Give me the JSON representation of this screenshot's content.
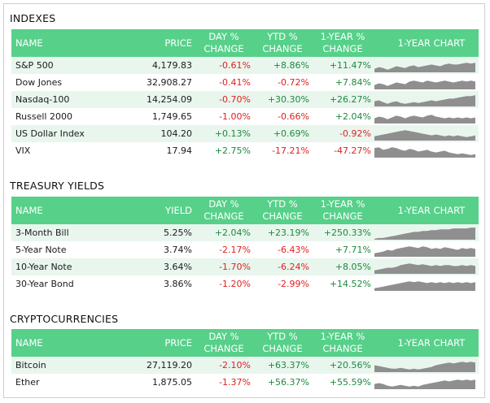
{
  "colors": {
    "header_bg": "#57d08a",
    "row_alt": "#e9f6ee",
    "positive": "#1c8a3e",
    "negative": "#e02020",
    "spark": "#8f8f8f"
  },
  "headers": {
    "name": "NAME",
    "price": "PRICE",
    "yield": "YIELD",
    "day_1": "DAY %",
    "day_2": "CHANGE",
    "ytd_1": "YTD %",
    "ytd_2": "CHANGE",
    "yr_1": "1-YEAR %",
    "yr_2": "CHANGE",
    "chart": "1-YEAR CHART"
  },
  "indexes": {
    "title": "INDEXES",
    "rows": [
      {
        "name": "S&P 500",
        "price": "4,179.83",
        "day": "-0.61%",
        "ytd": "+8.86%",
        "yr": "+11.47%",
        "spark": [
          4,
          6,
          5,
          3,
          5,
          7,
          6,
          5,
          7,
          8,
          6,
          7,
          8,
          9,
          8,
          7,
          9,
          10,
          9,
          9,
          10,
          11,
          10,
          11
        ]
      },
      {
        "name": "Dow Jones",
        "price": "32,908.27",
        "day": "-0.41%",
        "ytd": "-0.72%",
        "yr": "+7.84%",
        "spark": [
          5,
          7,
          6,
          4,
          6,
          8,
          7,
          6,
          9,
          10,
          9,
          8,
          10,
          9,
          8,
          9,
          10,
          9,
          8,
          9,
          10,
          9,
          10,
          9
        ]
      },
      {
        "name": "Nasdaq-100",
        "price": "14,254.09",
        "day": "-0.70%",
        "ytd": "+30.30%",
        "yr": "+26.27%",
        "spark": [
          6,
          7,
          5,
          3,
          5,
          6,
          4,
          3,
          4,
          5,
          4,
          5,
          6,
          7,
          6,
          7,
          8,
          9,
          9,
          10,
          11,
          12,
          12,
          13
        ]
      },
      {
        "name": "Russell 2000",
        "price": "1,749.65",
        "day": "-1.00%",
        "ytd": "-0.66%",
        "yr": "+2.04%",
        "spark": [
          6,
          8,
          7,
          5,
          7,
          9,
          8,
          6,
          8,
          9,
          8,
          7,
          9,
          10,
          8,
          7,
          6,
          7,
          6,
          7,
          6,
          7,
          6,
          7
        ]
      },
      {
        "name": "US Dollar Index",
        "price": "104.20",
        "day": "+0.13%",
        "ytd": "+0.69%",
        "yr": "-0.92%",
        "spark": [
          5,
          6,
          7,
          8,
          9,
          10,
          11,
          12,
          11,
          10,
          9,
          8,
          7,
          6,
          7,
          6,
          5,
          6,
          5,
          6,
          5,
          4,
          5,
          6
        ]
      },
      {
        "name": "VIX",
        "price": "17.94",
        "day": "+2.75%",
        "ytd": "-17.21%",
        "yr": "-47.27%",
        "spark": [
          11,
          12,
          9,
          10,
          12,
          11,
          9,
          8,
          10,
          9,
          7,
          8,
          9,
          7,
          6,
          7,
          8,
          6,
          5,
          4,
          5,
          4,
          3,
          4
        ]
      }
    ]
  },
  "treasury": {
    "title": "TREASURY YIELDS",
    "rows": [
      {
        "name": "3-Month Bill",
        "price": "5.25%",
        "day": "+2.04%",
        "ytd": "+23.19%",
        "yr": "+250.33%",
        "spark": [
          1,
          2,
          2,
          3,
          4,
          5,
          6,
          7,
          8,
          9,
          9,
          10,
          10,
          11,
          11,
          12,
          12,
          12,
          13,
          13,
          13,
          13,
          14,
          14
        ]
      },
      {
        "name": "5-Year Note",
        "price": "3.74%",
        "day": "-2.17%",
        "ytd": "-6.43%",
        "yr": "+7.71%",
        "spark": [
          4,
          5,
          6,
          8,
          7,
          9,
          10,
          11,
          12,
          11,
          10,
          12,
          11,
          9,
          10,
          9,
          11,
          10,
          9,
          8,
          10,
          9,
          10,
          9
        ]
      },
      {
        "name": "10-Year Note",
        "price": "3.64%",
        "day": "-1.70%",
        "ytd": "-6.24%",
        "yr": "+8.05%",
        "spark": [
          4,
          5,
          6,
          7,
          7,
          8,
          10,
          11,
          12,
          11,
          10,
          11,
          10,
          9,
          10,
          9,
          10,
          10,
          9,
          9,
          10,
          9,
          10,
          9
        ]
      },
      {
        "name": "30-Year Bond",
        "price": "3.86%",
        "day": "-1.20%",
        "ytd": "-2.99%",
        "yr": "+14.52%",
        "spark": [
          3,
          4,
          5,
          6,
          7,
          8,
          9,
          10,
          11,
          10,
          11,
          10,
          9,
          10,
          9,
          10,
          9,
          10,
          9,
          10,
          9,
          10,
          9,
          10
        ]
      }
    ]
  },
  "crypto": {
    "title": "CRYPTOCURRENCIES",
    "rows": [
      {
        "name": "Bitcoin",
        "price": "27,119.20",
        "day": "-2.10%",
        "ytd": "+63.37%",
        "yr": "+20.56%",
        "spark": [
          8,
          7,
          6,
          5,
          4,
          4,
          5,
          4,
          3,
          4,
          3,
          4,
          5,
          6,
          8,
          9,
          10,
          11,
          10,
          11,
          12,
          11,
          12,
          11
        ]
      },
      {
        "name": "Ether",
        "price": "1,875.05",
        "day": "-1.37%",
        "ytd": "+56.37%",
        "yr": "+55.59%",
        "spark": [
          6,
          7,
          6,
          4,
          3,
          4,
          5,
          4,
          3,
          4,
          3,
          5,
          6,
          7,
          8,
          9,
          10,
          9,
          10,
          11,
          10,
          11,
          10,
          11
        ]
      }
    ]
  }
}
